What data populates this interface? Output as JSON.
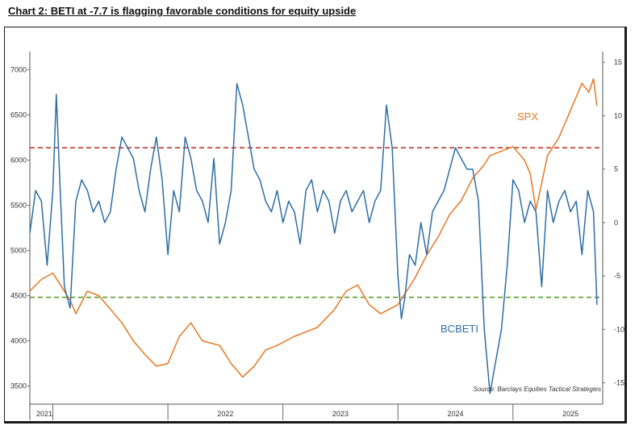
{
  "title": "Chart 2: BETI at -7.7 is flagging favorable conditions for equity upside",
  "chart_data": {
    "type": "line",
    "title": "Chart 2: BETI at -7.7 is flagging favorable conditions for equity upside",
    "x_start": 2020.8,
    "x_end": 2025.78,
    "xticks": [
      "2021",
      "2022",
      "2023",
      "2024",
      "2025"
    ],
    "left_axis": {
      "ylim": [
        3300,
        7200
      ],
      "ticks": [
        3500,
        4000,
        4500,
        5000,
        5500,
        6000,
        6500,
        7000
      ]
    },
    "right_axis": {
      "ylim": [
        -17,
        16
      ],
      "ticks": [
        15,
        10,
        5,
        0,
        -5,
        -10,
        -15
      ]
    },
    "reference_lines": [
      {
        "axis": "right",
        "value": 7,
        "color": "#c0392b",
        "style": "dashed"
      },
      {
        "axis": "right",
        "value": -7,
        "color": "#5a9e2a",
        "style": "dashed"
      }
    ],
    "series": [
      {
        "name": "SPX",
        "axis": "left",
        "color": "#e87722",
        "x": [
          2020.8,
          2020.9,
          2021.0,
          2021.05,
          2021.15,
          2021.2,
          2021.3,
          2021.4,
          2021.5,
          2021.6,
          2021.7,
          2021.8,
          2021.9,
          2022.0,
          2022.1,
          2022.2,
          2022.3,
          2022.45,
          2022.55,
          2022.65,
          2022.75,
          2022.85,
          2022.95,
          2023.1,
          2023.2,
          2023.3,
          2023.45,
          2023.55,
          2023.65,
          2023.75,
          2023.85,
          2024.0,
          2024.15,
          2024.25,
          2024.35,
          2024.45,
          2024.55,
          2024.65,
          2024.75,
          2024.8,
          2024.9,
          2025.0,
          2025.1,
          2025.15,
          2025.2,
          2025.3,
          2025.4,
          2025.5,
          2025.6,
          2025.66,
          2025.7,
          2025.73
        ],
        "values": [
          4550,
          4680,
          4750,
          4650,
          4450,
          4300,
          4550,
          4500,
          4350,
          4200,
          4000,
          3850,
          3720,
          3750,
          4050,
          4200,
          4000,
          3950,
          3750,
          3600,
          3720,
          3900,
          3950,
          4050,
          4100,
          4150,
          4350,
          4550,
          4620,
          4400,
          4300,
          4400,
          4700,
          4950,
          5150,
          5400,
          5550,
          5800,
          5950,
          6050,
          6100,
          6150,
          6000,
          5850,
          5450,
          6050,
          6250,
          6550,
          6850,
          6750,
          6900,
          6600
        ]
      },
      {
        "name": "BCBETI",
        "axis": "right",
        "color": "#2e6da4",
        "x": [
          2020.8,
          2020.85,
          2020.9,
          2020.95,
          2021.0,
          2021.03,
          2021.06,
          2021.1,
          2021.15,
          2021.2,
          2021.25,
          2021.3,
          2021.35,
          2021.4,
          2021.45,
          2021.5,
          2021.55,
          2021.6,
          2021.65,
          2021.7,
          2021.75,
          2021.8,
          2021.85,
          2021.9,
          2021.95,
          2022.0,
          2022.05,
          2022.1,
          2022.15,
          2022.2,
          2022.25,
          2022.3,
          2022.35,
          2022.4,
          2022.45,
          2022.5,
          2022.55,
          2022.6,
          2022.65,
          2022.7,
          2022.75,
          2022.8,
          2022.85,
          2022.9,
          2022.95,
          2023.0,
          2023.05,
          2023.1,
          2023.15,
          2023.2,
          2023.25,
          2023.3,
          2023.35,
          2023.4,
          2023.45,
          2023.5,
          2023.55,
          2023.6,
          2023.65,
          2023.7,
          2023.75,
          2023.8,
          2023.85,
          2023.9,
          2023.95,
          2024.0,
          2024.03,
          2024.06,
          2024.1,
          2024.15,
          2024.2,
          2024.25,
          2024.3,
          2024.35,
          2024.4,
          2024.45,
          2024.5,
          2024.55,
          2024.6,
          2024.65,
          2024.7,
          2024.75,
          2024.8,
          2024.85,
          2024.9,
          2024.95,
          2025.0,
          2025.05,
          2025.1,
          2025.15,
          2025.2,
          2025.25,
          2025.3,
          2025.35,
          2025.4,
          2025.45,
          2025.5,
          2025.55,
          2025.6,
          2025.65,
          2025.7,
          2025.73
        ],
        "values": [
          -1,
          3,
          2,
          -4,
          3,
          12,
          4,
          -6,
          -8,
          2,
          4,
          3,
          1,
          2,
          0,
          1,
          5,
          8,
          7,
          6,
          3,
          1,
          5,
          8,
          4,
          -3,
          3,
          1,
          8,
          6,
          3,
          2,
          0,
          6,
          -2,
          0,
          3,
          13,
          11,
          8,
          5,
          4,
          2,
          1,
          3,
          0,
          2,
          1,
          -2,
          3,
          4,
          1,
          3,
          2,
          -1,
          2,
          3,
          1,
          2,
          3,
          0,
          2,
          3,
          11,
          7,
          -5,
          -9,
          -7,
          -3,
          -4,
          0,
          -3,
          1,
          2,
          3,
          5,
          7,
          6,
          5,
          5,
          2,
          -10,
          -16,
          -13,
          -10,
          -4,
          4,
          3,
          0,
          2,
          1,
          -6,
          3,
          0,
          2,
          3,
          1,
          2,
          -3,
          3,
          1,
          -7.7
        ]
      }
    ],
    "series_labels": {
      "spx": "SPX",
      "beti": "BCBETI"
    },
    "source": "Source: Barclays Equities Tactical Strategies"
  }
}
